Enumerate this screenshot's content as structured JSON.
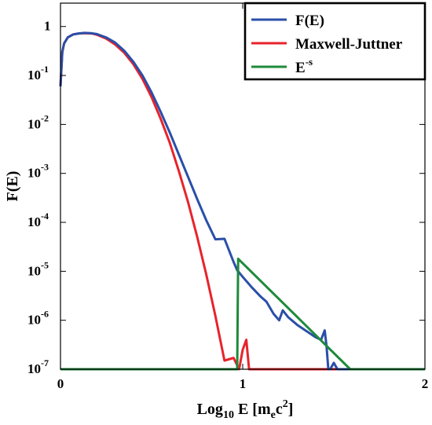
{
  "chart_data": {
    "type": "line",
    "xlabel": "Log₁₀ E [mₑc²]",
    "xlabel_parts": {
      "a": "Log",
      "b": "10",
      "c": " E [m",
      "d": "e",
      "e": "c",
      "f": "2",
      "g": "]"
    },
    "ylabel": "F(E)",
    "xlim": [
      0,
      2
    ],
    "ylim": [
      1e-07,
      3
    ],
    "yscale": "log",
    "x_ticks": [
      {
        "value": 0,
        "label": "0"
      },
      {
        "value": 1,
        "label": "1"
      },
      {
        "value": 2,
        "label": "2"
      }
    ],
    "y_ticks": [
      {
        "value": 1,
        "base": "1",
        "exp": ""
      },
      {
        "value": 0.1,
        "base": "10",
        "exp": "-1"
      },
      {
        "value": 0.01,
        "base": "10",
        "exp": "-2"
      },
      {
        "value": 0.001,
        "base": "10",
        "exp": "-3"
      },
      {
        "value": 0.0001,
        "base": "10",
        "exp": "-4"
      },
      {
        "value": 1e-05,
        "base": "10",
        "exp": "-5"
      },
      {
        "value": 1e-06,
        "base": "10",
        "exp": "-6"
      },
      {
        "value": 1e-07,
        "base": "10",
        "exp": "-7"
      }
    ],
    "grid": false,
    "legend_position": "top-right",
    "series": [
      {
        "name": "F(E)",
        "color": "#2a4fa8",
        "x": [
          0.0,
          0.01,
          0.02,
          0.04,
          0.07,
          0.1,
          0.13,
          0.17,
          0.2,
          0.25,
          0.3,
          0.35,
          0.4,
          0.45,
          0.5,
          0.55,
          0.6,
          0.65,
          0.7,
          0.75,
          0.8,
          0.85,
          0.9,
          0.95,
          0.97,
          1.0,
          1.05,
          1.1,
          1.13,
          1.17,
          1.2,
          1.22,
          1.25,
          1.3,
          1.35,
          1.4,
          1.43,
          1.45,
          1.46,
          1.47,
          1.48,
          1.5,
          1.52,
          1.54,
          1.56,
          1.58,
          1.6,
          2.0
        ],
        "y": [
          0.06,
          0.3,
          0.45,
          0.6,
          0.69,
          0.72,
          0.74,
          0.73,
          0.7,
          0.6,
          0.47,
          0.32,
          0.19,
          0.1,
          0.045,
          0.018,
          0.0068,
          0.0024,
          0.00085,
          0.0003,
          0.00011,
          4.5e-05,
          4.6e-05,
          1.55e-05,
          1.05e-05,
          7.7e-06,
          4.7e-06,
          3e-06,
          2.4e-06,
          1.35e-06,
          1e-06,
          1.6e-06,
          1.15e-06,
          8e-07,
          6e-07,
          4.5e-07,
          4e-07,
          6.2e-07,
          3e-07,
          1e-07,
          1e-07,
          1.35e-07,
          1e-07,
          1e-07,
          1e-07,
          1e-07,
          1e-07,
          1e-07
        ]
      },
      {
        "name": "Maxwell-Juttner",
        "color": "#e8232b",
        "x": [
          0.0,
          0.01,
          0.02,
          0.04,
          0.07,
          0.1,
          0.13,
          0.17,
          0.2,
          0.25,
          0.3,
          0.35,
          0.4,
          0.45,
          0.5,
          0.55,
          0.6,
          0.65,
          0.7,
          0.75,
          0.8,
          0.85,
          0.9,
          0.95,
          0.98,
          1.0,
          1.02,
          1.035,
          2.0
        ],
        "y": [
          0.06,
          0.3,
          0.45,
          0.6,
          0.69,
          0.72,
          0.73,
          0.72,
          0.68,
          0.57,
          0.43,
          0.29,
          0.17,
          0.085,
          0.036,
          0.013,
          0.0042,
          0.0011,
          0.00026,
          5.1e-05,
          8.6e-06,
          1.23e-06,
          1.5e-07,
          1.7e-07,
          1e-07,
          2.5e-07,
          4e-07,
          1e-07,
          1e-07
        ]
      },
      {
        "name": "E",
        "name_sup": "-s",
        "color": "#1e8a3a",
        "x": [
          0.0,
          0.97,
          0.975,
          1.59,
          2.0
        ],
        "y": [
          1e-07,
          1e-07,
          1.8e-05,
          1e-07,
          1e-07
        ]
      }
    ]
  }
}
